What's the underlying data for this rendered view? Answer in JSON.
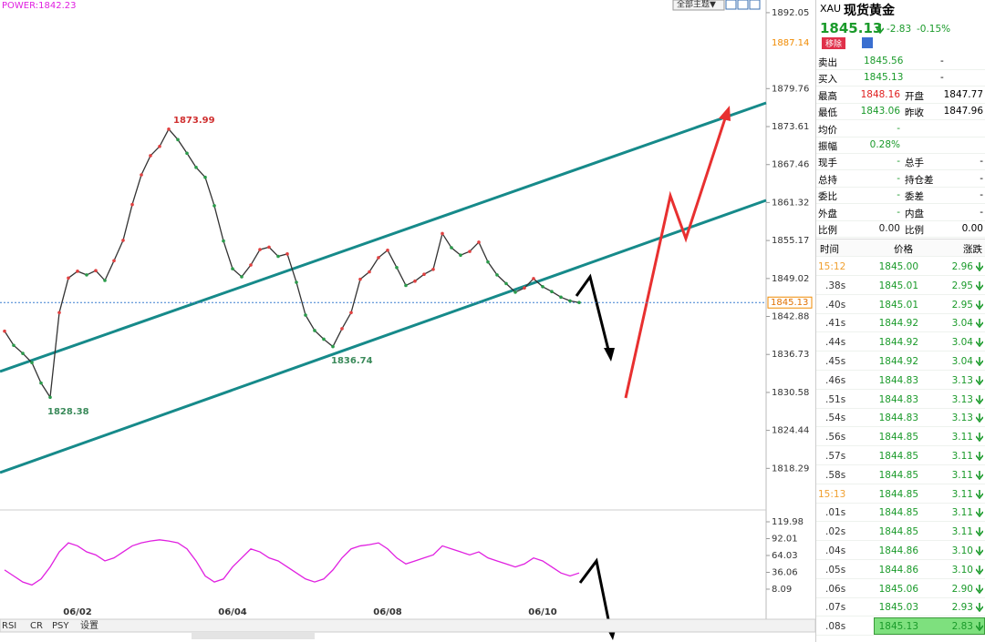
{
  "header": {
    "indicator": "POWER:1842.23",
    "theme_button": "全部主题▼"
  },
  "price_chart": {
    "ylim": [
      1812,
      1894.1
    ],
    "yticks": [
      1892.05,
      1879.76,
      1873.61,
      1867.46,
      1861.32,
      1855.17,
      1849.02,
      1842.88,
      1836.73,
      1830.58,
      1824.44,
      1818.29
    ],
    "marker": 1887.14,
    "current_price": 1845.13,
    "annotations": [
      1873.99,
      1836.74,
      1828.38
    ],
    "categories": [
      null,
      null,
      null,
      null,
      null,
      null,
      null,
      null,
      "06/02",
      null,
      null,
      null,
      null,
      null,
      null,
      null,
      null,
      null,
      null,
      null,
      null,
      null,
      null,
      null,
      null,
      "06/04",
      null,
      null,
      null,
      null,
      null,
      null,
      null,
      null,
      null,
      null,
      null,
      null,
      null,
      null,
      null,
      null,
      "06/08",
      null,
      null,
      null,
      null,
      null,
      null,
      null,
      null,
      null,
      null,
      null,
      null,
      null,
      null,
      null,
      null,
      "06/10",
      null,
      null,
      null,
      null
    ],
    "values": [
      1840.5,
      1838.2,
      1836.9,
      1835.4,
      1832.1,
      1829.8,
      1843.5,
      1849.1,
      1850.2,
      1849.6,
      1850.3,
      1848.7,
      1851.9,
      1855.2,
      1861.0,
      1865.8,
      1868.9,
      1870.4,
      1873.2,
      1871.5,
      1869.3,
      1867.0,
      1865.4,
      1860.8,
      1855.1,
      1850.6,
      1849.3,
      1851.2,
      1853.7,
      1854.1,
      1852.6,
      1853.0,
      1848.4,
      1843.1,
      1840.6,
      1839.2,
      1838.0,
      1840.9,
      1843.5,
      1848.9,
      1850.1,
      1852.4,
      1853.6,
      1850.8,
      1847.9,
      1848.6,
      1849.7,
      1850.5,
      1856.3,
      1854.0,
      1852.8,
      1853.4,
      1854.9,
      1851.7,
      1849.6,
      1848.2,
      1846.8,
      1847.5,
      1849.0,
      1847.7,
      1846.9,
      1846.0,
      1845.4,
      1845.13
    ],
    "color": "#333333"
  },
  "oscillator": {
    "ylim": [
      -11.6,
      132.1
    ],
    "yticks": [
      119.98,
      92.01,
      64.03,
      36.06,
      8.09
    ],
    "color": "#e020e0",
    "values": [
      40,
      30,
      20,
      15,
      25,
      45,
      70,
      85,
      80,
      70,
      65,
      55,
      60,
      70,
      80,
      85,
      88,
      90,
      88,
      85,
      75,
      55,
      30,
      20,
      25,
      45,
      60,
      75,
      70,
      60,
      55,
      45,
      35,
      25,
      20,
      25,
      40,
      60,
      75,
      80,
      82,
      85,
      75,
      60,
      50,
      55,
      60,
      65,
      80,
      75,
      70,
      65,
      70,
      60,
      55,
      50,
      45,
      50,
      60,
      55,
      45,
      35,
      30,
      35
    ]
  },
  "tabs": [
    "RSI",
    "CR",
    "PSY",
    "设置"
  ],
  "quote": {
    "symbol": "XAU",
    "name": "现货黄金",
    "price": "1845.13",
    "change": "-2.83",
    "change_pct": "-0.15%",
    "remove_button": "移除",
    "rows": [
      {
        "label": "卖出",
        "value": "1845.56",
        "extra": "-"
      },
      {
        "label": "买入",
        "value": "1845.13",
        "extra": "-"
      },
      {
        "label": "最高",
        "value": "1848.16",
        "value_color": "#e02020",
        "label2": "开盘",
        "value2": "1847.77"
      },
      {
        "label": "最低",
        "value": "1843.06",
        "label2": "昨收",
        "value2": "1847.96"
      },
      {
        "label": "均价",
        "value": "-"
      },
      {
        "label": "振幅",
        "value": "0.28%"
      },
      {
        "label": "现手",
        "value": "-",
        "label2": "总手",
        "value2": "-"
      },
      {
        "label": "总持",
        "value": "-",
        "label2": "持仓差",
        "value2": "-"
      },
      {
        "label": "委比",
        "value": "-",
        "label2": "委差",
        "value2": "-"
      },
      {
        "label": "外盘",
        "value": "-",
        "label2": "内盘",
        "value2": "-"
      },
      {
        "label": "比例",
        "value": "0.00",
        "value_color": "#222222",
        "label2": "比例",
        "value2": "0.00"
      }
    ]
  },
  "trades": {
    "headers": [
      "时间",
      "价格",
      "涨跌"
    ],
    "rows": [
      {
        "time": "15:12",
        "price": "1845.00",
        "change": "2.96"
      },
      {
        "time": ".38s",
        "price": "1845.01",
        "change": "2.95"
      },
      {
        "time": ".40s",
        "price": "1845.01",
        "change": "2.95"
      },
      {
        "time": ".41s",
        "price": "1844.92",
        "change": "3.04"
      },
      {
        "time": ".44s",
        "price": "1844.92",
        "change": "3.04"
      },
      {
        "time": ".45s",
        "price": "1844.92",
        "change": "3.04"
      },
      {
        "time": ".46s",
        "price": "1844.83",
        "change": "3.13"
      },
      {
        "time": ".51s",
        "price": "1844.83",
        "change": "3.13"
      },
      {
        "time": ".54s",
        "price": "1844.83",
        "change": "3.13"
      },
      {
        "time": ".56s",
        "price": "1844.85",
        "change": "3.11"
      },
      {
        "time": ".57s",
        "price": "1844.85",
        "change": "3.11"
      },
      {
        "time": ".58s",
        "price": "1844.85",
        "change": "3.11"
      },
      {
        "time": "15:13",
        "price": "1844.85",
        "change": "3.11"
      },
      {
        "time": ".01s",
        "price": "1844.85",
        "change": "3.11"
      },
      {
        "time": ".02s",
        "price": "1844.85",
        "change": "3.11"
      },
      {
        "time": ".04s",
        "price": "1844.86",
        "change": "3.10"
      },
      {
        "time": ".05s",
        "price": "1844.86",
        "change": "3.10"
      },
      {
        "time": ".06s",
        "price": "1845.06",
        "change": "2.90"
      },
      {
        "time": ".07s",
        "price": "1845.03",
        "change": "2.93"
      },
      {
        "time": ".08s",
        "price": "1845.13",
        "change": "2.83",
        "highlight": true
      }
    ]
  }
}
